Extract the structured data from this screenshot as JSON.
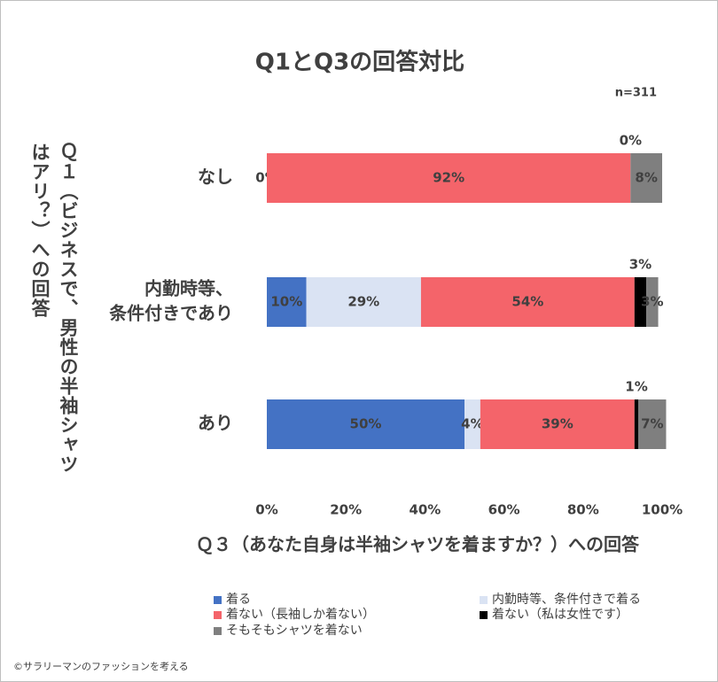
{
  "chart_data": {
    "type": "stacked-bar-horizontal",
    "title": "Q1とQ3の回答対比",
    "subtitle": "n=311",
    "x_label": "Ｑ３（あなた自身は半袖シャツを着ますか？）への回答",
    "y_label": "Ｑ１（ビジネスで、男性の半袖シャツはアリ？）への回答",
    "source": "©サラリーマンのファッションを考える",
    "categories": [
      [
        "なし"
      ],
      [
        "内勤時等、",
        "条件付きであり"
      ],
      [
        "あり"
      ]
    ],
    "xlim": [
      0,
      100
    ],
    "xticks": [
      {
        "value": 0,
        "label": "0%"
      },
      {
        "value": 20,
        "label": "20%"
      },
      {
        "value": 40,
        "label": "40%"
      },
      {
        "value": 60,
        "label": "60%"
      },
      {
        "value": 80,
        "label": "80%"
      },
      {
        "value": 100,
        "label": "100%"
      }
    ],
    "series": [
      {
        "name": "着る",
        "color": "#4472c4",
        "values": [
          0,
          10,
          50
        ],
        "value_labels": [
          "0%",
          "10%",
          "50%"
        ]
      },
      {
        "name": "内勤時等、条件付きで着る",
        "color": "#dae3f3",
        "values": [
          0,
          29,
          4
        ],
        "value_labels": [
          null,
          "29%",
          "4%"
        ]
      },
      {
        "name": "着ない（長袖しか着ない）",
        "color": "#f4646a",
        "values": [
          92,
          54,
          39
        ],
        "value_labels": [
          "92%",
          "54%",
          "39%"
        ]
      },
      {
        "name": "着ない（私は女性です）",
        "color": "#000000",
        "values": [
          0,
          3,
          1
        ],
        "value_labels": [
          "0%",
          "3%",
          "1%"
        ]
      },
      {
        "name": "そもそもシャツを着ない",
        "color": "#7f7f7f",
        "values": [
          8,
          3,
          7
        ],
        "value_labels": [
          "8%",
          "3%",
          "7%"
        ]
      }
    ]
  }
}
